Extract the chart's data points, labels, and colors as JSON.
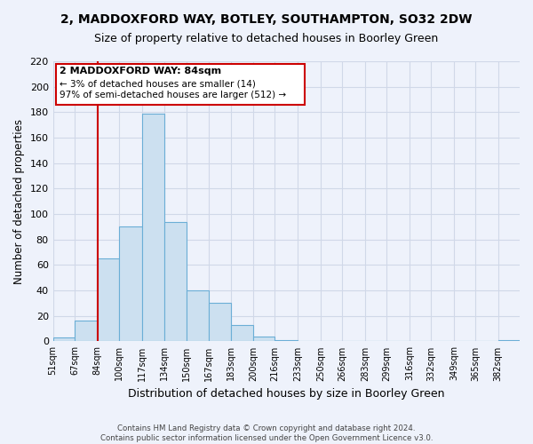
{
  "title": "2, MADDOXFORD WAY, BOTLEY, SOUTHAMPTON, SO32 2DW",
  "subtitle": "Size of property relative to detached houses in Boorley Green",
  "xlabel": "Distribution of detached houses by size in Boorley Green",
  "ylabel": "Number of detached properties",
  "bin_edges": [
    51,
    67,
    84,
    100,
    117,
    134,
    150,
    167,
    183,
    200,
    216,
    233,
    250,
    266,
    283,
    299,
    316,
    332,
    349,
    365,
    382,
    398
  ],
  "bar_heights": [
    3,
    16,
    65,
    90,
    179,
    94,
    40,
    30,
    13,
    4,
    1,
    0,
    0,
    0,
    0,
    0,
    0,
    0,
    0,
    0,
    1
  ],
  "bar_color": "#cce0f0",
  "bar_edge_color": "#6baed6",
  "red_line_x": 84,
  "annotation_title": "2 MADDOXFORD WAY: 84sqm",
  "annotation_line1": "← 3% of detached houses are smaller (14)",
  "annotation_line2": "97% of semi-detached houses are larger (512) →",
  "annotation_box_edge_color": "#cc0000",
  "red_line_color": "#cc0000",
  "ylim": [
    0,
    220
  ],
  "yticks": [
    0,
    20,
    40,
    60,
    80,
    100,
    120,
    140,
    160,
    180,
    200,
    220
  ],
  "xtick_labels": [
    "51sqm",
    "67sqm",
    "84sqm",
    "100sqm",
    "117sqm",
    "134sqm",
    "150sqm",
    "167sqm",
    "183sqm",
    "200sqm",
    "216sqm",
    "233sqm",
    "250sqm",
    "266sqm",
    "283sqm",
    "299sqm",
    "316sqm",
    "332sqm",
    "349sqm",
    "365sqm",
    "382sqm"
  ],
  "footer_line1": "Contains HM Land Registry data © Crown copyright and database right 2024.",
  "footer_line2": "Contains public sector information licensed under the Open Government Licence v3.0.",
  "background_color": "#eef2fb",
  "grid_color": "#d0d8e8",
  "title_fontsize": 10,
  "subtitle_fontsize": 9
}
